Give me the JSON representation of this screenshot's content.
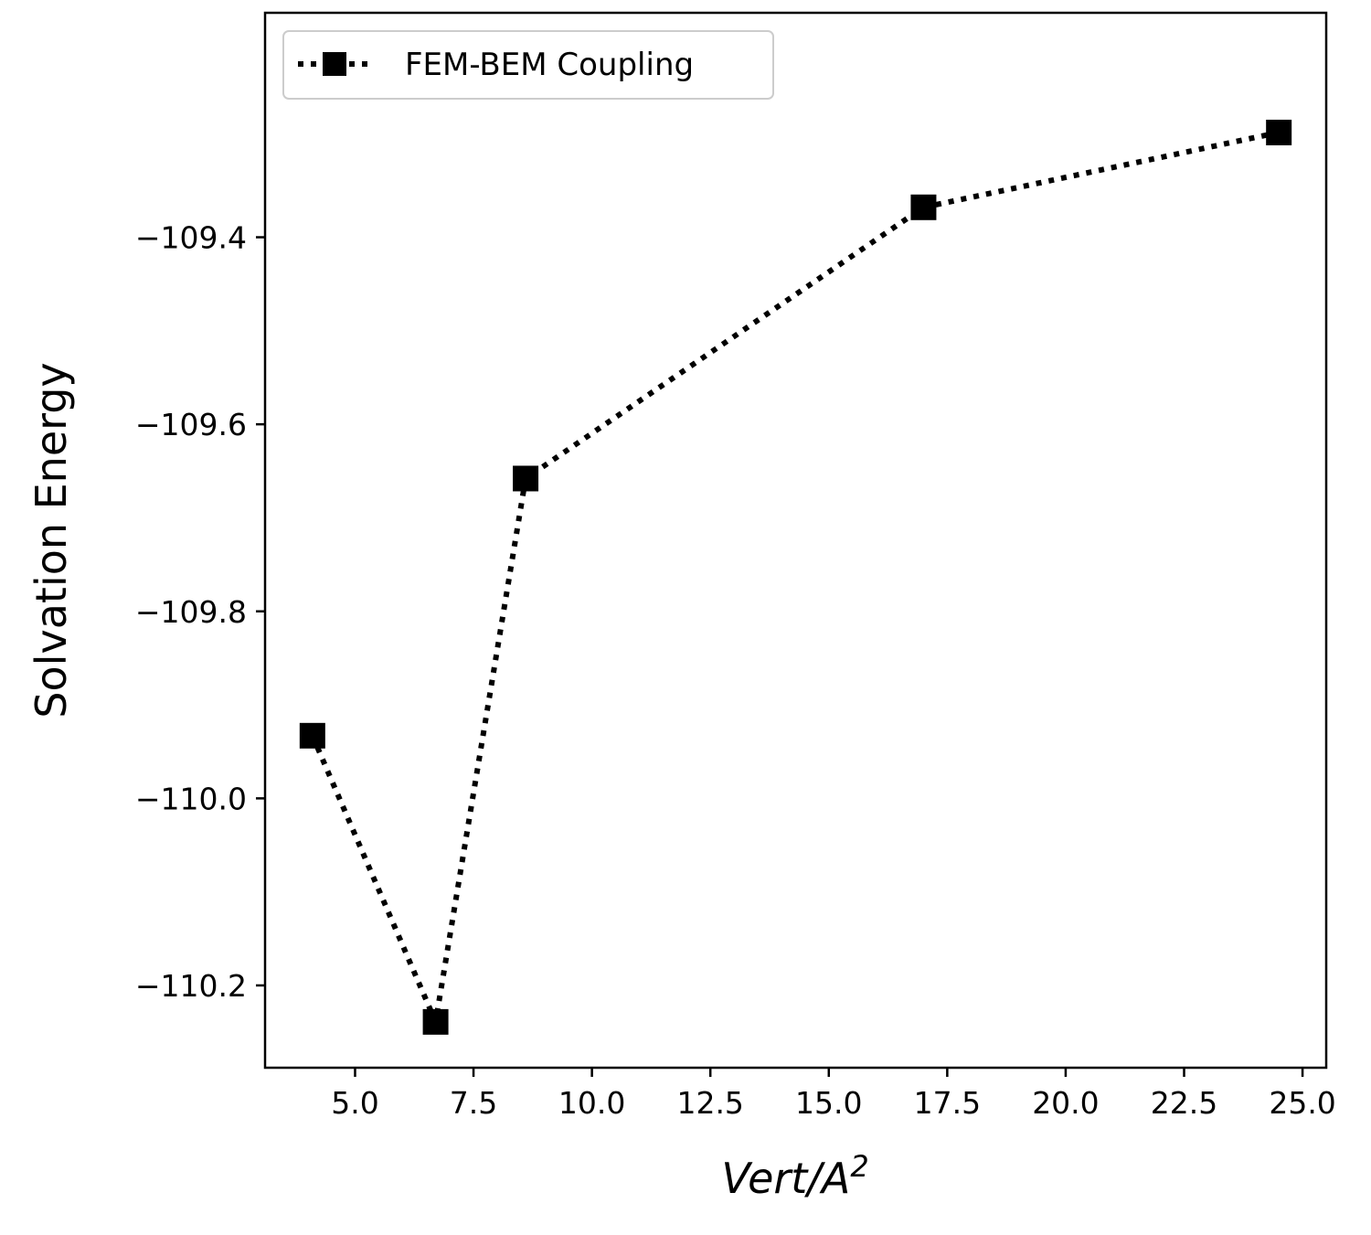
{
  "chart_data": {
    "type": "line",
    "xlabel": "Vert/A",
    "xlabel_superscript": "2",
    "ylabel": "Solvation Energy",
    "xlim": [
      3.1,
      25.5
    ],
    "ylim": [
      -110.288,
      -109.16
    ],
    "x_ticks": [
      5.0,
      7.5,
      10.0,
      12.5,
      15.0,
      17.5,
      20.0,
      22.5,
      25.0
    ],
    "x_tick_labels": [
      "5.0",
      "7.5",
      "10.0",
      "12.5",
      "15.0",
      "17.5",
      "20.0",
      "22.5",
      "25.0"
    ],
    "y_ticks": [
      -109.4,
      -109.6,
      -109.8,
      -110.0,
      -110.2
    ],
    "y_tick_labels": [
      "−109.4",
      "−109.6",
      "−109.8",
      "−110.0",
      "−110.2"
    ],
    "grid": false,
    "legend_position": "upper-left",
    "series": [
      {
        "name": "FEM-BEM Coupling",
        "color": "#000000",
        "line_style": "dotted",
        "marker": "square",
        "x": [
          4.1,
          6.7,
          8.6,
          17.0,
          24.5
        ],
        "y": [
          -109.933,
          -110.239,
          -109.658,
          -109.368,
          -109.288
        ]
      }
    ]
  }
}
